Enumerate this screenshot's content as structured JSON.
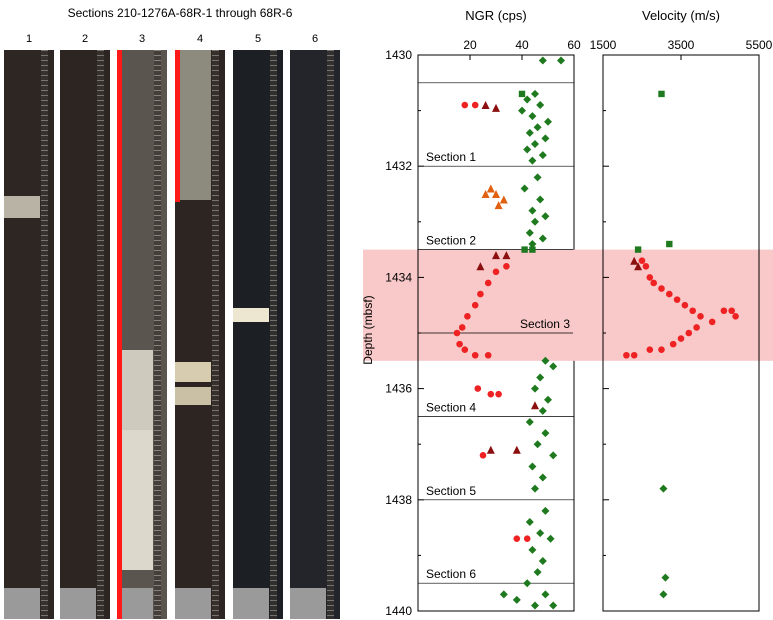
{
  "photo_panel": {
    "title": "Sections 210-1276A-68R-1 through 68R-6",
    "sections": [
      {
        "label": "1",
        "tone": "#2e2623"
      },
      {
        "label": "2",
        "tone": "#2c2522"
      },
      {
        "label": "3",
        "tone": "#5a554e"
      },
      {
        "label": "4",
        "tone": "#2d2522"
      },
      {
        "label": "5",
        "tone": "#1c1f24"
      },
      {
        "label": "6",
        "tone": "#24252a"
      }
    ]
  },
  "chart_data": [
    {
      "type": "scatter",
      "title": "NGR (cps)",
      "ylabel": "Depth (mbsf)",
      "xlim": [
        0,
        60
      ],
      "ylim": [
        1430,
        1440
      ],
      "x_ticks": [
        20,
        40,
        60
      ],
      "y_ticks": [
        1430,
        1432,
        1434,
        1436,
        1438,
        1440
      ],
      "highlight_band": [
        1433.5,
        1435.5
      ],
      "section_boundaries": [
        {
          "depth": 1430.5,
          "label": ""
        },
        {
          "depth": 1432.0,
          "label": "Section 1"
        },
        {
          "depth": 1433.5,
          "label": "Section 2"
        },
        {
          "depth": 1435.0,
          "label": "Section 3"
        },
        {
          "depth": 1436.5,
          "label": "Section 4"
        },
        {
          "depth": 1438.0,
          "label": "Section 5"
        },
        {
          "depth": 1439.5,
          "label": "Section 6"
        }
      ],
      "series": [
        {
          "marker": "diamond",
          "color": "#1f7a1f",
          "points": [
            [
              55,
              1430.1
            ],
            [
              48,
              1430.1
            ],
            [
              45,
              1430.7
            ],
            [
              42,
              1430.8
            ],
            [
              47,
              1430.9
            ],
            [
              40,
              1431.0
            ],
            [
              44,
              1431.1
            ],
            [
              50,
              1431.2
            ],
            [
              46,
              1431.3
            ],
            [
              43,
              1431.4
            ],
            [
              49,
              1431.5
            ],
            [
              45,
              1431.6
            ],
            [
              42,
              1431.7
            ],
            [
              48,
              1431.8
            ],
            [
              44,
              1431.9
            ],
            [
              46,
              1432.2
            ],
            [
              41,
              1432.4
            ],
            [
              47,
              1432.6
            ],
            [
              44,
              1432.8
            ],
            [
              49,
              1432.9
            ],
            [
              45,
              1433.0
            ],
            [
              43,
              1433.2
            ],
            [
              48,
              1433.3
            ],
            [
              44,
              1433.4
            ],
            [
              49,
              1435.5
            ],
            [
              52,
              1435.6
            ],
            [
              47,
              1435.8
            ],
            [
              45,
              1436.0
            ],
            [
              50,
              1436.2
            ],
            [
              48,
              1436.4
            ],
            [
              43,
              1436.6
            ],
            [
              49,
              1436.8
            ],
            [
              46,
              1437.0
            ],
            [
              52,
              1437.2
            ],
            [
              44,
              1437.4
            ],
            [
              48,
              1437.6
            ],
            [
              45,
              1437.8
            ],
            [
              49,
              1438.2
            ],
            [
              43,
              1438.4
            ],
            [
              47,
              1438.6
            ],
            [
              51,
              1438.7
            ],
            [
              44,
              1438.9
            ],
            [
              48,
              1439.1
            ],
            [
              46,
              1439.3
            ],
            [
              42,
              1439.5
            ],
            [
              49,
              1439.7
            ],
            [
              45,
              1439.9
            ],
            [
              52,
              1439.9
            ],
            [
              38,
              1439.8
            ],
            [
              33,
              1439.7
            ]
          ]
        },
        {
          "marker": "square",
          "color": "#1f7a1f",
          "points": [
            [
              40,
              1430.7
            ],
            [
              44,
              1433.5
            ],
            [
              41,
              1433.5
            ]
          ]
        },
        {
          "marker": "circle",
          "color": "#ee2222",
          "points": [
            [
              22,
              1430.9
            ],
            [
              18,
              1430.9
            ],
            [
              34,
              1433.8
            ],
            [
              30,
              1433.9
            ],
            [
              27,
              1434.1
            ],
            [
              24,
              1434.3
            ],
            [
              22,
              1434.5
            ],
            [
              19,
              1434.7
            ],
            [
              17,
              1434.9
            ],
            [
              15,
              1435.0
            ],
            [
              16,
              1435.2
            ],
            [
              18,
              1435.3
            ],
            [
              22,
              1435.4
            ],
            [
              27,
              1435.4
            ],
            [
              23,
              1436.0
            ],
            [
              28,
              1436.1
            ],
            [
              31,
              1436.1
            ],
            [
              25,
              1437.2
            ],
            [
              38,
              1438.7
            ],
            [
              42,
              1438.7
            ]
          ]
        },
        {
          "marker": "triangle",
          "color": "#e06010",
          "points": [
            [
              28,
              1432.4
            ],
            [
              30,
              1432.5
            ],
            [
              33,
              1432.6
            ],
            [
              31,
              1432.7
            ],
            [
              26,
              1432.5
            ]
          ]
        },
        {
          "marker": "triangle",
          "color": "#8b0f0f",
          "points": [
            [
              26,
              1430.9
            ],
            [
              30,
              1430.95
            ],
            [
              24,
              1433.8
            ],
            [
              30,
              1433.6
            ],
            [
              34,
              1433.6
            ],
            [
              45,
              1436.3
            ],
            [
              28,
              1437.1
            ],
            [
              38,
              1437.1
            ]
          ]
        }
      ]
    },
    {
      "type": "scatter",
      "title": "Velocity (m/s)",
      "xlim": [
        1500,
        5500
      ],
      "ylim": [
        1430,
        1440
      ],
      "x_ticks": [
        1500,
        3500,
        5500
      ],
      "highlight_band": [
        1433.5,
        1435.5
      ],
      "series": [
        {
          "marker": "square",
          "color": "#1f7a1f",
          "points": [
            [
              3000,
              1430.7
            ],
            [
              3200,
              1433.4
            ],
            [
              2400,
              1433.5
            ]
          ]
        },
        {
          "marker": "diamond",
          "color": "#1f7a1f",
          "points": [
            [
              3050,
              1437.8
            ],
            [
              3100,
              1439.4
            ],
            [
              3050,
              1439.7
            ]
          ]
        },
        {
          "marker": "circle",
          "color": "#ee2222",
          "points": [
            [
              2500,
              1433.7
            ],
            [
              2600,
              1433.8
            ],
            [
              2700,
              1434.0
            ],
            [
              2800,
              1434.1
            ],
            [
              3000,
              1434.2
            ],
            [
              3200,
              1434.3
            ],
            [
              3400,
              1434.4
            ],
            [
              3600,
              1434.5
            ],
            [
              3800,
              1434.6
            ],
            [
              4000,
              1434.7
            ],
            [
              4300,
              1434.8
            ],
            [
              4600,
              1434.6
            ],
            [
              4800,
              1434.6
            ],
            [
              4900,
              1434.7
            ],
            [
              3900,
              1434.9
            ],
            [
              3700,
              1435.0
            ],
            [
              3500,
              1435.1
            ],
            [
              3300,
              1435.2
            ],
            [
              3000,
              1435.3
            ],
            [
              2700,
              1435.3
            ],
            [
              2300,
              1435.4
            ],
            [
              2100,
              1435.4
            ]
          ]
        },
        {
          "marker": "triangle",
          "color": "#8b0f0f",
          "points": [
            [
              2300,
              1433.7
            ],
            [
              2400,
              1433.8
            ]
          ]
        }
      ]
    }
  ]
}
